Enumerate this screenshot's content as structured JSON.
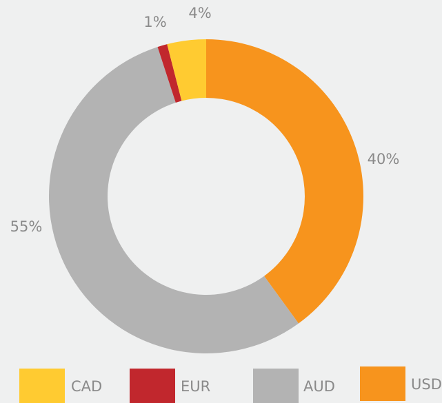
{
  "chart_data": {
    "type": "donut",
    "categories": [
      "USD",
      "AUD",
      "EUR",
      "CAD"
    ],
    "values": [
      40,
      55,
      1,
      4
    ],
    "value_labels": [
      "40%",
      "55%",
      "1%",
      "4%"
    ],
    "colors": [
      "#f7941d",
      "#b3b3b3",
      "#c1272d",
      "#ffcb31"
    ],
    "legend_order": [
      3,
      2,
      1,
      0
    ]
  }
}
